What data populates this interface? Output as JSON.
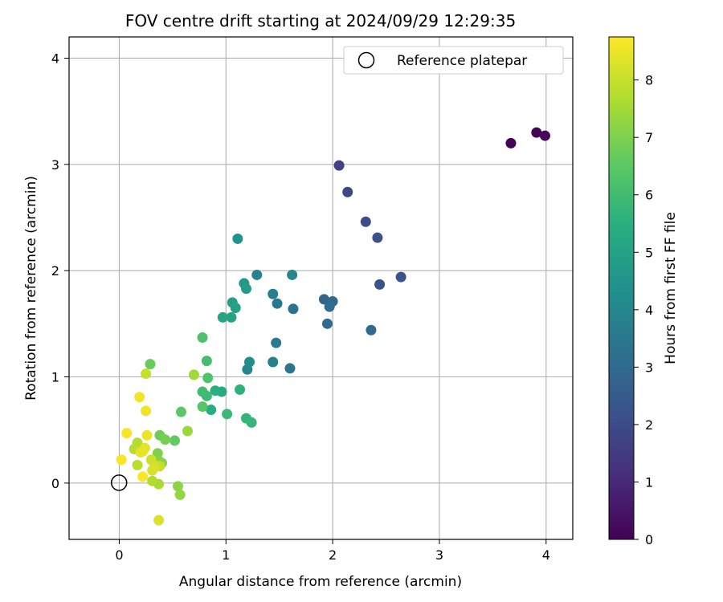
{
  "chart_data": {
    "type": "scatter",
    "title": "FOV centre drift starting at 2024/09/29 12:29:35",
    "xlabel": "Angular distance from reference (arcmin)",
    "ylabel": "Rotation from reference (arcmin)",
    "xlim": [
      -0.47,
      4.25
    ],
    "ylim": [
      -0.53,
      4.2
    ],
    "xticks": [
      0,
      1,
      2,
      3,
      4
    ],
    "yticks": [
      0,
      1,
      2,
      3,
      4
    ],
    "grid": true,
    "legend": {
      "position": "top-right",
      "entries": [
        "Reference platepar"
      ]
    },
    "reference_point": {
      "x": 0,
      "y": 0,
      "label": "Reference platepar"
    },
    "colorbar": {
      "label": "Hours from first FF file",
      "colormap": "viridis",
      "range": [
        0,
        8.75
      ],
      "ticks": [
        0,
        1,
        2,
        3,
        4,
        5,
        6,
        7,
        8
      ]
    },
    "series": [
      {
        "values_label": "points (x arcmin, y arcmin, hours)",
        "points": [
          [
            3.67,
            3.2,
            0.05
          ],
          [
            3.91,
            3.3,
            0.1
          ],
          [
            3.99,
            3.27,
            0.15
          ],
          [
            2.06,
            2.99,
            1.7
          ],
          [
            2.14,
            2.74,
            1.85
          ],
          [
            2.31,
            2.46,
            2.0
          ],
          [
            2.42,
            2.31,
            2.1
          ],
          [
            2.44,
            1.87,
            2.2
          ],
          [
            2.64,
            1.94,
            2.25
          ],
          [
            2.36,
            1.44,
            3.0
          ],
          [
            1.92,
            1.73,
            2.8
          ],
          [
            1.95,
            1.5,
            3.05
          ],
          [
            1.97,
            1.66,
            3.1
          ],
          [
            2.0,
            1.71,
            2.9
          ],
          [
            1.63,
            1.64,
            3.3
          ],
          [
            1.6,
            1.08,
            3.4
          ],
          [
            1.48,
            1.69,
            3.5
          ],
          [
            1.47,
            1.32,
            3.6
          ],
          [
            1.44,
            1.78,
            3.7
          ],
          [
            1.44,
            1.14,
            3.8
          ],
          [
            1.29,
            1.96,
            3.85
          ],
          [
            1.62,
            1.96,
            4.0
          ],
          [
            1.2,
            1.07,
            4.0
          ],
          [
            1.22,
            1.14,
            4.2
          ],
          [
            1.11,
            2.3,
            4.4
          ],
          [
            1.17,
            1.88,
            4.6
          ],
          [
            1.19,
            1.83,
            4.8
          ],
          [
            1.06,
            1.7,
            4.9
          ],
          [
            1.09,
            1.65,
            5.0
          ],
          [
            1.05,
            1.56,
            5.1
          ],
          [
            0.97,
            1.56,
            5.2
          ],
          [
            0.96,
            0.86,
            5.3
          ],
          [
            0.86,
            0.69,
            5.4
          ],
          [
            0.9,
            0.87,
            5.5
          ],
          [
            1.13,
            0.88,
            5.6
          ],
          [
            1.19,
            0.61,
            5.7
          ],
          [
            1.24,
            0.57,
            5.8
          ],
          [
            1.01,
            0.65,
            5.85
          ],
          [
            0.82,
            0.82,
            5.9
          ],
          [
            0.78,
            0.86,
            6.0
          ],
          [
            0.82,
            1.15,
            6.1
          ],
          [
            0.78,
            1.37,
            6.2
          ],
          [
            0.83,
            0.99,
            6.3
          ],
          [
            0.78,
            0.72,
            6.4
          ],
          [
            0.58,
            0.67,
            6.5
          ],
          [
            0.52,
            0.4,
            6.6
          ],
          [
            0.29,
            1.12,
            6.7
          ],
          [
            0.38,
            0.45,
            6.8
          ],
          [
            0.43,
            0.41,
            6.9
          ],
          [
            0.36,
            0.28,
            7.0
          ],
          [
            0.37,
            0.21,
            7.1
          ],
          [
            0.4,
            0.19,
            7.15
          ],
          [
            0.55,
            -0.03,
            7.2
          ],
          [
            0.57,
            -0.11,
            7.3
          ],
          [
            0.64,
            0.49,
            7.4
          ],
          [
            0.7,
            1.02,
            7.5
          ],
          [
            0.37,
            -0.01,
            7.6
          ],
          [
            0.31,
            0.02,
            7.7
          ],
          [
            0.17,
            0.38,
            7.75
          ],
          [
            0.14,
            0.32,
            7.8
          ],
          [
            0.17,
            0.17,
            7.85
          ],
          [
            0.38,
            0.16,
            7.9
          ],
          [
            0.35,
            0.16,
            8.0
          ],
          [
            0.25,
            1.03,
            8.0
          ],
          [
            0.3,
            0.22,
            8.1
          ],
          [
            0.33,
            0.15,
            8.2
          ],
          [
            0.31,
            0.12,
            8.25
          ],
          [
            0.37,
            -0.35,
            8.3
          ],
          [
            0.22,
            0.3,
            8.35
          ],
          [
            0.24,
            0.33,
            8.4
          ],
          [
            0.2,
            0.29,
            8.45
          ],
          [
            0.26,
            0.45,
            8.5
          ],
          [
            0.25,
            0.68,
            8.55
          ],
          [
            0.19,
            0.81,
            8.6
          ],
          [
            0.07,
            0.47,
            8.65
          ],
          [
            0.02,
            0.22,
            8.7
          ],
          [
            0.22,
            0.06,
            8.7
          ]
        ]
      }
    ]
  }
}
